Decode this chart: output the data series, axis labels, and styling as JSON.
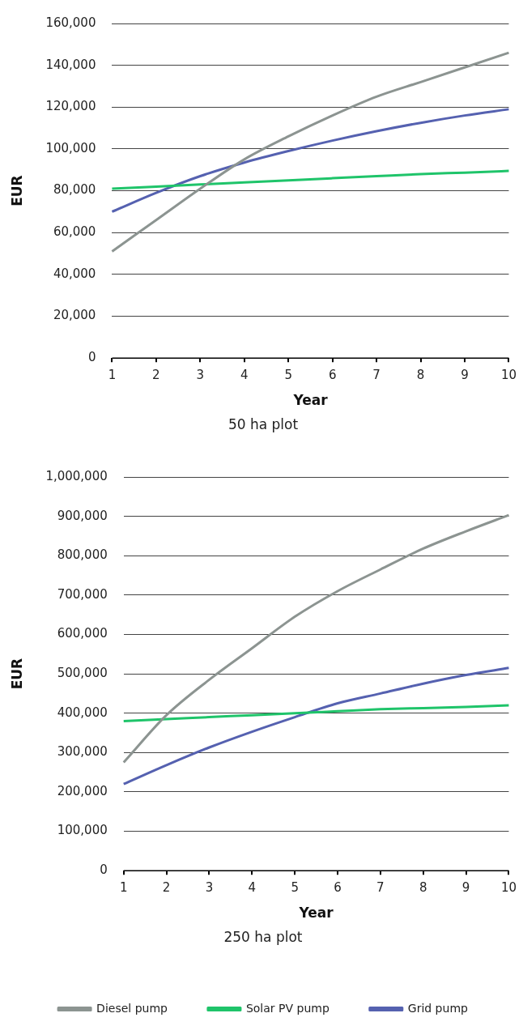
{
  "chart_data": [
    {
      "type": "line",
      "title": "50 ha plot",
      "xlabel": "Year",
      "ylabel": "EUR",
      "categories": [
        "1",
        "2",
        "3",
        "4",
        "5",
        "6",
        "7",
        "8",
        "9",
        "10"
      ],
      "series": [
        {
          "color": "#8c9491",
          "values": [
            51000,
            66000,
            81000,
            95000,
            106000,
            116000,
            125000,
            132000,
            139000,
            146000
          ]
        },
        {
          "color": "#1fc46a",
          "values": [
            81000,
            82000,
            83000,
            84000,
            85000,
            86000,
            87000,
            88000,
            88700,
            89500
          ]
        },
        {
          "color": "#5561b0",
          "values": [
            70000,
            79000,
            87000,
            93500,
            99000,
            104000,
            108500,
            112500,
            116000,
            119000
          ]
        }
      ],
      "ylim": [
        0,
        160000
      ],
      "yticks": [
        {
          "value": 0,
          "label": "0"
        },
        {
          "value": 20000,
          "label": "20,000"
        },
        {
          "value": 40000,
          "label": "40,000"
        },
        {
          "value": 60000,
          "label": "60,000"
        },
        {
          "value": 80000,
          "label": "80,000"
        },
        {
          "value": 100000,
          "label": "100,000"
        },
        {
          "value": 120000,
          "label": "120,000"
        },
        {
          "value": 140000,
          "label": "140,000"
        },
        {
          "value": 160000,
          "label": "160,000"
        }
      ],
      "grid": "y",
      "marker": "none",
      "line_style": "solid"
    },
    {
      "type": "line",
      "title": "250 ha plot",
      "xlabel": "Year",
      "ylabel": "EUR",
      "categories": [
        "1",
        "2",
        "3",
        "4",
        "5",
        "6",
        "7",
        "8",
        "9",
        "10"
      ],
      "series": [
        {
          "name": "Diesel pump",
          "color": "#8c9491",
          "values": [
            275000,
            395000,
            485000,
            565000,
            645000,
            710000,
            765000,
            818000,
            862000,
            903000
          ]
        },
        {
          "name": "Solar PV pump",
          "color": "#1fc46a",
          "values": [
            380000,
            385000,
            390000,
            395000,
            400000,
            405000,
            410000,
            413000,
            416000,
            420000
          ]
        },
        {
          "name": "Grid pump",
          "color": "#5561b0",
          "values": [
            220000,
            268000,
            313000,
            353000,
            390000,
            425000,
            450000,
            475000,
            497000,
            515000
          ]
        }
      ],
      "ylim": [
        0,
        1000000
      ],
      "yticks": [
        {
          "value": 0,
          "label": "0"
        },
        {
          "value": 100000,
          "label": "100,000"
        },
        {
          "value": 200000,
          "label": "200,000"
        },
        {
          "value": 300000,
          "label": "300,000"
        },
        {
          "value": 400000,
          "label": "400,000"
        },
        {
          "value": 500000,
          "label": "500,000"
        },
        {
          "value": 600000,
          "label": "600,000"
        },
        {
          "value": 700000,
          "label": "700,000"
        },
        {
          "value": 800000,
          "label": "800,000"
        },
        {
          "value": 900000,
          "label": "900,000"
        },
        {
          "value": 1000000,
          "label": "1,000,000"
        }
      ],
      "grid": "y",
      "marker": "none",
      "line_style": "solid",
      "legend": "bottom"
    }
  ]
}
